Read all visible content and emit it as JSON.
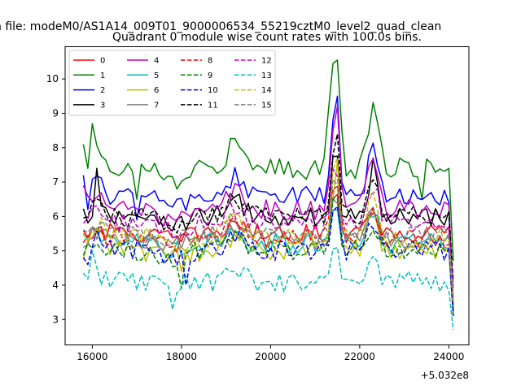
{
  "chart_data": {
    "type": "line",
    "suptitle": "n file: modeM0/AS1A14_009T01_9000006534_55219cztM0_level2_quad_clean",
    "title": "Quadrant 0 module wise count rates with 100.0s bins.",
    "xlabel": "",
    "ylabel": "",
    "x_offset_label": "+5.032e8",
    "x_offset": 503200000,
    "xlim": [
      15390,
      24450
    ],
    "ylim": [
      2.25,
      10.95
    ],
    "x_ticks": [
      16000,
      18000,
      20000,
      22000,
      24000
    ],
    "x_tick_labels": [
      "16000",
      "18000",
      "20000",
      "22000",
      "24000"
    ],
    "y_ticks": [
      3,
      4,
      5,
      6,
      7,
      8,
      9,
      10
    ],
    "y_tick_labels": [
      "3",
      "4",
      "5",
      "6",
      "7",
      "8",
      "9",
      "10"
    ],
    "legend_position": "upper-left",
    "x_start": 15800,
    "x_step": 100,
    "series": [
      {
        "name": "0",
        "color": "#ff0000",
        "dash": "solid",
        "base": 5.5,
        "noise": 0.28,
        "amp": 1.5
      },
      {
        "name": "1",
        "color": "#008000",
        "dash": "solid",
        "base": 7.4,
        "noise": 0.32,
        "amp": 3.0,
        "anchors": [
          [
            15800,
            8.1
          ],
          [
            15900,
            7.4
          ],
          [
            16000,
            8.7
          ],
          [
            17000,
            6.5
          ],
          [
            21300,
            9.1
          ],
          [
            21400,
            10.45
          ],
          [
            21500,
            10.55
          ],
          [
            21600,
            8.5
          ],
          [
            23400,
            6.5
          ],
          [
            24000,
            7.4
          ],
          [
            24100,
            4.7
          ]
        ]
      },
      {
        "name": "2",
        "color": "#0000ff",
        "dash": "solid",
        "base": 6.6,
        "noise": 0.28,
        "amp": 2.5,
        "anchors": [
          [
            15800,
            7.2
          ],
          [
            15900,
            6.2
          ],
          [
            17000,
            5.9
          ],
          [
            21500,
            9.5
          ],
          [
            21600,
            7.0
          ],
          [
            24000,
            6.4
          ],
          [
            24100,
            3.3
          ]
        ]
      },
      {
        "name": "3",
        "color": "#000000",
        "dash": "solid",
        "base": 6.0,
        "noise": 0.3,
        "amp": 2.0,
        "anchors": [
          [
            16100,
            7.4
          ],
          [
            22300,
            7.7
          ],
          [
            24100,
            3.2
          ]
        ]
      },
      {
        "name": "4",
        "color": "#bf00bf",
        "dash": "solid",
        "base": 6.2,
        "noise": 0.3,
        "amp": 2.8,
        "anchors": [
          [
            15800,
            6.9
          ],
          [
            21500,
            9.2
          ],
          [
            24100,
            3.4
          ]
        ]
      },
      {
        "name": "5",
        "color": "#00bfbf",
        "dash": "solid",
        "base": 5.2,
        "noise": 0.3,
        "amp": 1.5
      },
      {
        "name": "6",
        "color": "#bfbf00",
        "dash": "solid",
        "base": 5.0,
        "noise": 0.3,
        "amp": 2.0,
        "anchors": [
          [
            18000,
            4.4
          ],
          [
            21500,
            7.6
          ]
        ]
      },
      {
        "name": "7",
        "color": "#808080",
        "dash": "solid",
        "base": 5.3,
        "noise": 0.28,
        "amp": 1.5
      },
      {
        "name": "8",
        "color": "#ff0000",
        "dash": "dashed",
        "base": 5.4,
        "noise": 0.28,
        "amp": 1.6
      },
      {
        "name": "9",
        "color": "#008000",
        "dash": "dashed",
        "base": 5.0,
        "noise": 0.3,
        "amp": 1.6,
        "anchors": [
          [
            18000,
            3.9
          ]
        ]
      },
      {
        "name": "10",
        "color": "#0000ff",
        "dash": "dashed",
        "base": 5.0,
        "noise": 0.3,
        "amp": 1.7,
        "anchors": [
          [
            15800,
            4.8
          ],
          [
            15900,
            4.6
          ],
          [
            18100,
            4.0
          ]
        ]
      },
      {
        "name": "11",
        "color": "#000000",
        "dash": "dashed",
        "base": 6.0,
        "noise": 0.3,
        "amp": 2.4,
        "anchors": [
          [
            21500,
            8.4
          ]
        ]
      },
      {
        "name": "12",
        "color": "#bf00bf",
        "dash": "dashed",
        "base": 5.8,
        "noise": 0.28,
        "amp": 2.0
      },
      {
        "name": "13",
        "color": "#00bfbf",
        "dash": "dashed",
        "base": 4.1,
        "noise": 0.3,
        "amp": 1.2,
        "anchors": [
          [
            15800,
            4.35
          ],
          [
            16000,
            5.0
          ],
          [
            17800,
            3.3
          ],
          [
            24100,
            2.7
          ]
        ]
      },
      {
        "name": "14",
        "color": "#bfbf00",
        "dash": "dashed",
        "base": 5.4,
        "noise": 0.3,
        "amp": 2.2,
        "anchors": [
          [
            21500,
            7.7
          ]
        ]
      },
      {
        "name": "15",
        "color": "#808080",
        "dash": "dashed",
        "base": 5.5,
        "noise": 0.28,
        "amp": 1.6
      }
    ]
  }
}
